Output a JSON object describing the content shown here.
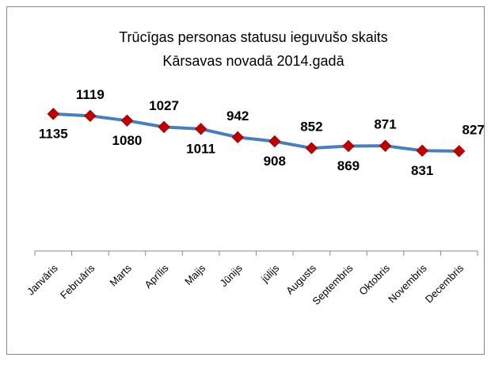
{
  "chart_data": {
    "type": "line",
    "title": [
      "Trūcīgas personas statusu ieguvušo skaits",
      "Kārsavas novadā 2014.gadā"
    ],
    "categories": [
      "Janvāris",
      "Februāris",
      "Marts",
      "Aprīlis",
      "Maijs",
      "Jūnijs",
      "jūlijs",
      "Augusts",
      "Septembris",
      "Oktobris",
      "Novembris",
      "Decembris"
    ],
    "series": [
      {
        "color": "#4a7ebb",
        "marker_color": "#c00000",
        "values": [
          1135,
          1119,
          1080,
          1027,
          1011,
          942,
          908,
          852,
          869,
          871,
          831,
          827
        ]
      }
    ],
    "ylim": [
      0,
      1200
    ]
  }
}
